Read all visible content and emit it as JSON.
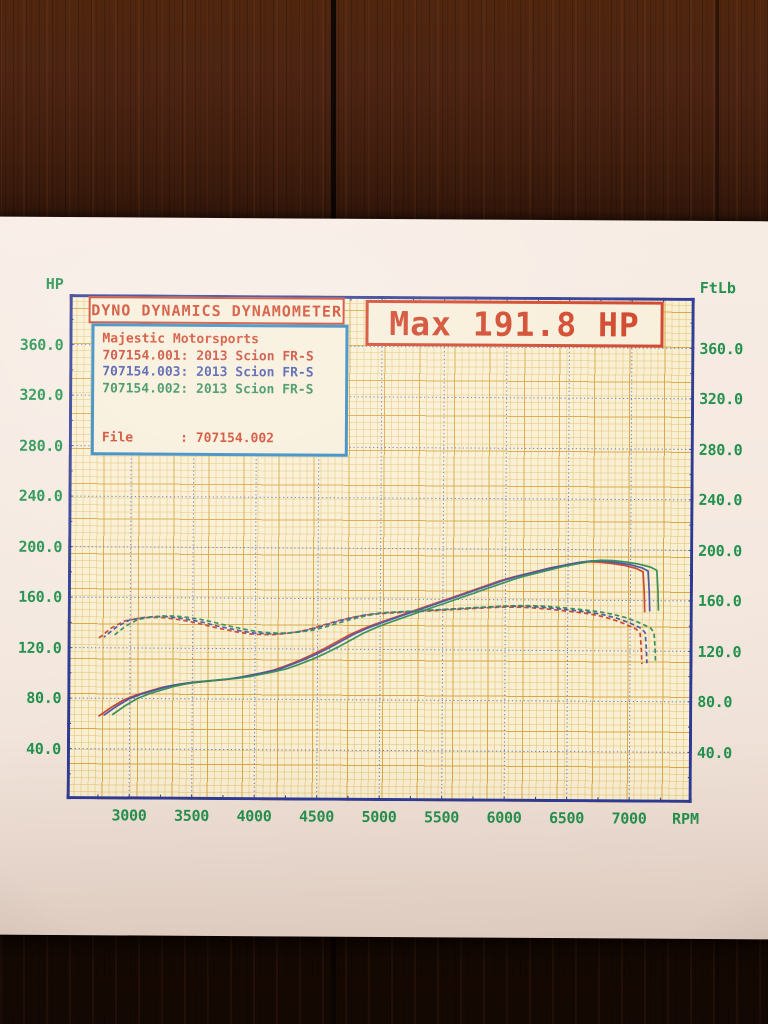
{
  "scene": {
    "description": "Photograph of a printed Dyno Dynamics dyno chart sheet lying on a dark wood table",
    "colors": {
      "wood_dark": "#1a0c05",
      "wood_light": "#50260f",
      "paper": "#f4e8df",
      "plot_background": "#f9efd2",
      "grid_yellow": "#d5a034",
      "grid_blue": "#5a6fc8",
      "frame_blue": "#2c3a96",
      "text_green": "#23914e",
      "text_red": "#cf4327",
      "legend_border_blue": "#2e86c1"
    }
  },
  "header": {
    "title": "DYNO DYNAMICS DYNAMOMETER",
    "max_badge": "Max 191.8 HP"
  },
  "legend": {
    "shop": "Majestic Motorsports",
    "runs": [
      {
        "label": "707154.001: 2013 Scion FR-S",
        "color": "#c8402c"
      },
      {
        "label": "707154.003: 2013 Scion FR-S",
        "color": "#4352a8"
      },
      {
        "label": "707154.002: 2013 Scion FR-S",
        "color": "#2e8b57"
      }
    ],
    "file_line": "File      : 707154.002"
  },
  "axes": {
    "left_title": "HP",
    "right_title": "FtLb",
    "x_title": "RPM",
    "y_tick_labels": [
      "360.0",
      "320.0",
      "280.0",
      "240.0",
      "200.0",
      "160.0",
      "120.0",
      "80.0",
      "40.0"
    ],
    "y_tick_values": [
      360,
      320,
      280,
      240,
      200,
      160,
      120,
      80,
      40
    ],
    "x_tick_labels": [
      "3000",
      "3500",
      "4000",
      "4500",
      "5000",
      "5500",
      "6000",
      "6500",
      "7000"
    ],
    "x_tick_values": [
      3000,
      3500,
      4000,
      4500,
      5000,
      5500,
      6000,
      6500,
      7000
    ]
  },
  "chart_data": {
    "type": "line",
    "title": "Dyno Dynamics Dynamometer — 2013 Scion FR-S, three overlaid runs",
    "x_label": "RPM",
    "y_left_label": "HP",
    "y_right_label": "FtLb",
    "x_range": [
      2500,
      7500
    ],
    "y_range": [
      0,
      400
    ],
    "grid": "fine yellow graph paper with dotted blue major gridlines every 500 RPM / 40 units",
    "legend_position": "top-left box",
    "max_hp": 191.8,
    "runs": [
      {
        "file": "707154.001",
        "vehicle": "2013 Scion FR-S",
        "color": "#c8402c"
      },
      {
        "file": "707154.003",
        "vehicle": "2013 Scion FR-S",
        "color": "#4352a8"
      },
      {
        "file": "707154.002",
        "vehicle": "2013 Scion FR-S",
        "color": "#2e8b57"
      }
    ],
    "series": [
      {
        "name": "Power (HP)",
        "style": "solid",
        "points": [
          [
            2750,
            67
          ],
          [
            2850,
            74
          ],
          [
            2950,
            80
          ],
          [
            3050,
            84
          ],
          [
            3150,
            87
          ],
          [
            3250,
            90
          ],
          [
            3350,
            92
          ],
          [
            3450,
            93.5
          ],
          [
            3550,
            94.5
          ],
          [
            3650,
            95.5
          ],
          [
            3750,
            96.5
          ],
          [
            3850,
            98
          ],
          [
            3950,
            100
          ],
          [
            4050,
            102
          ],
          [
            4150,
            104.5
          ],
          [
            4250,
            108
          ],
          [
            4350,
            112
          ],
          [
            4450,
            116.5
          ],
          [
            4550,
            121.5
          ],
          [
            4650,
            127
          ],
          [
            4750,
            132.5
          ],
          [
            4850,
            137
          ],
          [
            4950,
            141
          ],
          [
            5050,
            144.5
          ],
          [
            5150,
            148
          ],
          [
            5250,
            151.5
          ],
          [
            5350,
            155
          ],
          [
            5450,
            158.5
          ],
          [
            5550,
            162
          ],
          [
            5650,
            165.5
          ],
          [
            5750,
            169
          ],
          [
            5850,
            172.5
          ],
          [
            5950,
            176
          ],
          [
            6050,
            179
          ],
          [
            6150,
            181.5
          ],
          [
            6250,
            184
          ],
          [
            6350,
            186.5
          ],
          [
            6450,
            188.5
          ],
          [
            6550,
            190.5
          ],
          [
            6650,
            191.8
          ],
          [
            6750,
            191.5
          ],
          [
            6850,
            190.5
          ],
          [
            6950,
            189
          ],
          [
            7050,
            186.5
          ],
          [
            7100,
            184
          ],
          [
            7110,
            168
          ],
          [
            7115,
            152
          ]
        ]
      },
      {
        "name": "Torque (FtLb)",
        "style": "dashed",
        "points": [
          [
            2750,
            129
          ],
          [
            2850,
            137
          ],
          [
            2950,
            142.5
          ],
          [
            3050,
            144.5
          ],
          [
            3150,
            145.5
          ],
          [
            3250,
            145.5
          ],
          [
            3350,
            144.5
          ],
          [
            3450,
            143
          ],
          [
            3550,
            141
          ],
          [
            3650,
            138.5
          ],
          [
            3750,
            136.5
          ],
          [
            3850,
            134.5
          ],
          [
            3950,
            133
          ],
          [
            4050,
            132.5
          ],
          [
            4150,
            132.5
          ],
          [
            4250,
            133.5
          ],
          [
            4350,
            135
          ],
          [
            4450,
            137.5
          ],
          [
            4550,
            140.5
          ],
          [
            4650,
            143.5
          ],
          [
            4750,
            146
          ],
          [
            4850,
            148
          ],
          [
            4950,
            149.3
          ],
          [
            5050,
            150
          ],
          [
            5150,
            150.6
          ],
          [
            5250,
            151.2
          ],
          [
            5350,
            151.8
          ],
          [
            5450,
            152.4
          ],
          [
            5550,
            153
          ],
          [
            5650,
            153.6
          ],
          [
            5750,
            154.2
          ],
          [
            5850,
            154.8
          ],
          [
            5950,
            155.3
          ],
          [
            6050,
            155.5
          ],
          [
            6150,
            155.3
          ],
          [
            6250,
            154.8
          ],
          [
            6350,
            154
          ],
          [
            6450,
            153
          ],
          [
            6550,
            152
          ],
          [
            6650,
            150.8
          ],
          [
            6750,
            149
          ],
          [
            6850,
            146.5
          ],
          [
            6950,
            143
          ],
          [
            7050,
            138.5
          ],
          [
            7080,
            135
          ],
          [
            7090,
            122
          ],
          [
            7095,
            111
          ]
        ]
      }
    ]
  }
}
